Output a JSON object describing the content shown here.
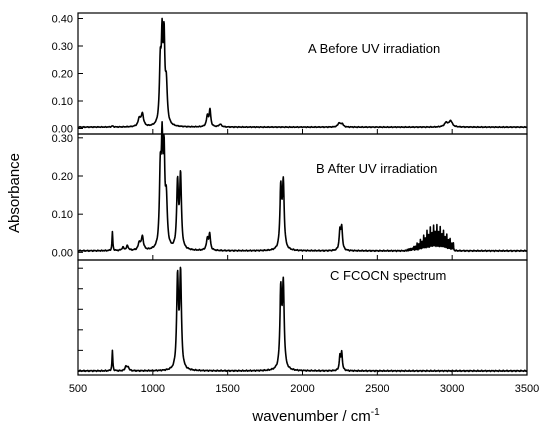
{
  "chart_data": {
    "type": "line",
    "xlabel": "wavenumber / cm",
    "xlabel_superscript": "-1",
    "ylabel": "Absorbance",
    "xlim": [
      500,
      3500
    ],
    "x_ticks": [
      "500",
      "1000",
      "1500",
      "2000",
      "2500",
      "3000",
      "3500"
    ],
    "x_tick_values": [
      500,
      1000,
      1500,
      2000,
      2500,
      3000,
      3500
    ],
    "panels": [
      {
        "label": "A Before UV irradiation",
        "ylim": [
          -0.02,
          0.42
        ],
        "y_ticks": [
          "0.00",
          "0.10",
          "0.20",
          "0.30",
          "0.40"
        ],
        "y_tick_values": [
          0.0,
          0.1,
          0.2,
          0.3,
          0.4
        ],
        "baseline": 0.005,
        "peaks": [
          {
            "x": 730,
            "h": 0.004,
            "w": 6
          },
          {
            "x": 910,
            "h": 0.03,
            "w": 10
          },
          {
            "x": 930,
            "h": 0.045,
            "w": 9
          },
          {
            "x": 1050,
            "h": 0.21,
            "w": 7
          },
          {
            "x": 1062,
            "h": 0.28,
            "w": 6
          },
          {
            "x": 1075,
            "h": 0.29,
            "w": 6
          },
          {
            "x": 1090,
            "h": 0.14,
            "w": 8
          },
          {
            "x": 1365,
            "h": 0.04,
            "w": 8
          },
          {
            "x": 1382,
            "h": 0.06,
            "w": 6
          },
          {
            "x": 1450,
            "h": 0.01,
            "w": 10
          },
          {
            "x": 2245,
            "h": 0.015,
            "w": 10
          },
          {
            "x": 2265,
            "h": 0.012,
            "w": 8
          },
          {
            "x": 2960,
            "h": 0.016,
            "w": 14
          },
          {
            "x": 2990,
            "h": 0.022,
            "w": 12
          }
        ]
      },
      {
        "label": "B After UV irradiation",
        "ylim": [
          -0.02,
          0.31
        ],
        "y_ticks": [
          "0.00",
          "0.10",
          "0.20",
          "0.30"
        ],
        "y_tick_values": [
          0.0,
          0.1,
          0.2,
          0.3
        ],
        "baseline": 0.004,
        "peaks": [
          {
            "x": 730,
            "h": 0.05,
            "w": 3
          },
          {
            "x": 800,
            "h": 0.008,
            "w": 8
          },
          {
            "x": 830,
            "h": 0.012,
            "w": 8
          },
          {
            "x": 910,
            "h": 0.02,
            "w": 9
          },
          {
            "x": 930,
            "h": 0.035,
            "w": 8
          },
          {
            "x": 1050,
            "h": 0.19,
            "w": 7
          },
          {
            "x": 1062,
            "h": 0.24,
            "w": 6
          },
          {
            "x": 1075,
            "h": 0.22,
            "w": 6
          },
          {
            "x": 1090,
            "h": 0.12,
            "w": 8
          },
          {
            "x": 1165,
            "h": 0.17,
            "w": 7
          },
          {
            "x": 1185,
            "h": 0.19,
            "w": 7
          },
          {
            "x": 1365,
            "h": 0.03,
            "w": 8
          },
          {
            "x": 1380,
            "h": 0.04,
            "w": 6
          },
          {
            "x": 1855,
            "h": 0.16,
            "w": 7
          },
          {
            "x": 1872,
            "h": 0.17,
            "w": 7
          },
          {
            "x": 2250,
            "h": 0.05,
            "w": 6
          },
          {
            "x": 2262,
            "h": 0.06,
            "w": 6
          }
        ],
        "comb": {
          "start": 2700,
          "end": 3010,
          "step": 11,
          "center": 2890,
          "height": 0.065,
          "spread": 110
        }
      },
      {
        "label": "C  FCOCN spectrum",
        "ylim": [
          -0.01,
          0.27
        ],
        "y_ticks": [
          "",
          "",
          "",
          "",
          "",
          ""
        ],
        "y_tick_values": [
          0.0,
          0.05,
          0.1,
          0.15,
          0.2,
          0.25
        ],
        "baseline": 0.0,
        "peaks": [
          {
            "x": 730,
            "h": 0.05,
            "w": 3
          },
          {
            "x": 820,
            "h": 0.012,
            "w": 6
          },
          {
            "x": 835,
            "h": 0.01,
            "w": 6
          },
          {
            "x": 1165,
            "h": 0.22,
            "w": 7
          },
          {
            "x": 1185,
            "h": 0.23,
            "w": 7
          },
          {
            "x": 1855,
            "h": 0.19,
            "w": 7
          },
          {
            "x": 1872,
            "h": 0.2,
            "w": 7
          },
          {
            "x": 2250,
            "h": 0.035,
            "w": 5
          },
          {
            "x": 2262,
            "h": 0.045,
            "w": 5
          }
        ]
      }
    ]
  }
}
